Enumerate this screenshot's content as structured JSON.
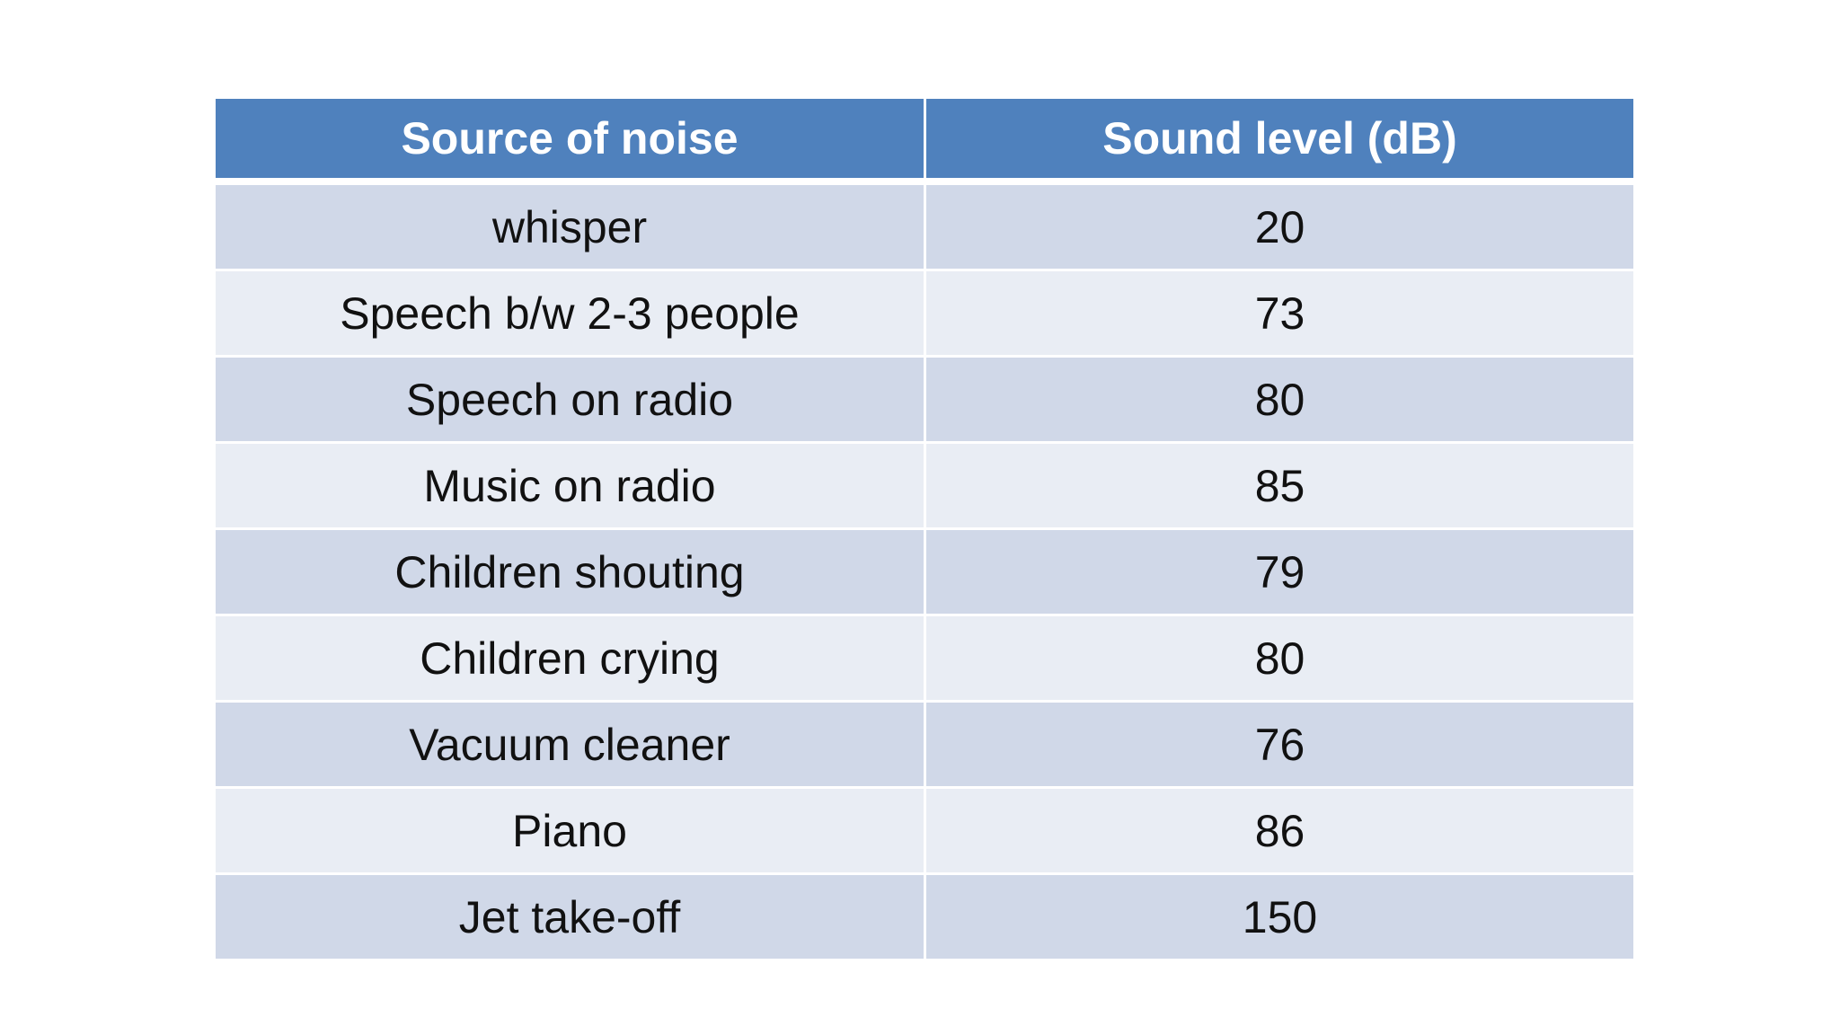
{
  "table": {
    "headers": [
      "Source of noise",
      "Sound level (dB)"
    ],
    "rows": [
      [
        "whisper",
        "20"
      ],
      [
        "Speech b/w 2-3 people",
        "73"
      ],
      [
        "Speech on radio",
        "80"
      ],
      [
        "Music on radio",
        "85"
      ],
      [
        "Children shouting",
        "79"
      ],
      [
        "Children crying",
        "80"
      ],
      [
        "Vacuum cleaner",
        "76"
      ],
      [
        "Piano",
        "86"
      ],
      [
        "Jet take-off",
        "150"
      ]
    ],
    "colors": {
      "header_bg": "#4f81bd",
      "row_odd_bg": "#d0d8e8",
      "row_even_bg": "#e9edf4"
    }
  }
}
